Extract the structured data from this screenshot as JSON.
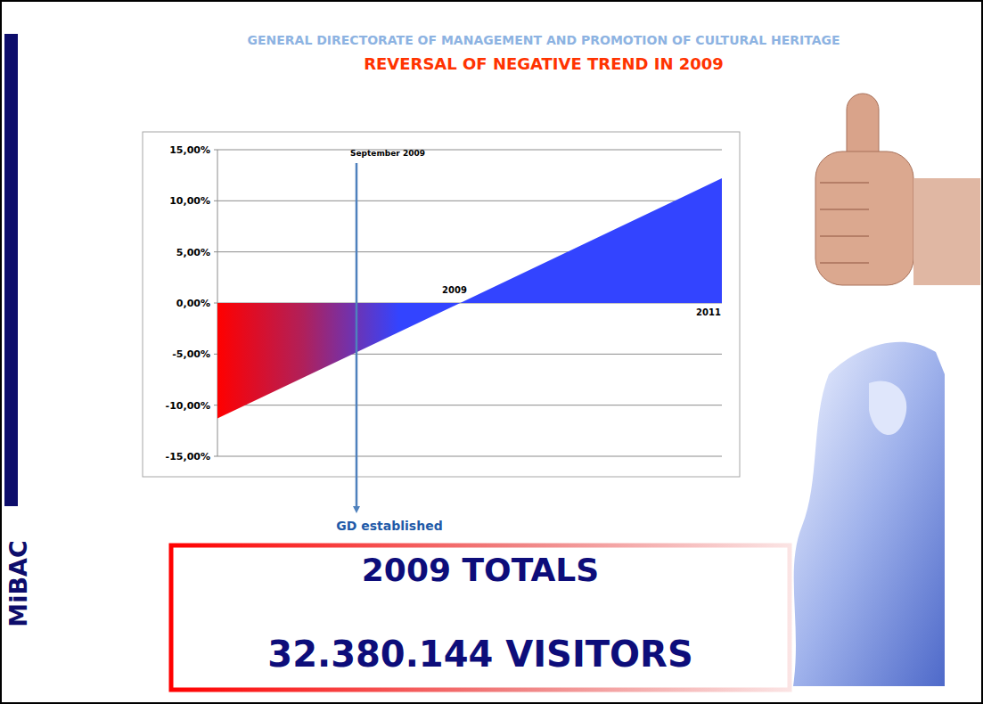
{
  "header": {
    "department": "GENERAL DIRECTORATE OF MANAGEMENT AND PROMOTION OF CULTURAL HERITAGE",
    "title": "REVERSAL OF NEGATIVE TREND IN 2009"
  },
  "logo": "MiBAC",
  "chart_data": {
    "type": "area",
    "categories": [
      null,
      null
    ],
    "values": [
      -11.3,
      12.2
    ],
    "color": "#3344ff",
    "ylim": [
      -15,
      15
    ],
    "yticks": [
      {
        "value": -15,
        "label": "-15,00%"
      },
      {
        "value": -10,
        "label": "-10,00%"
      },
      {
        "value": -5,
        "label": "-5,00%"
      },
      {
        "value": 0,
        "label": "0,00%"
      },
      {
        "value": 5,
        "label": "5,00%"
      },
      {
        "value": 10,
        "label": "10,00%"
      },
      {
        "value": 15,
        "label": "15,00%"
      }
    ],
    "grid": true,
    "tick_labels": "y",
    "annotations": [
      "September 2009",
      "GD established",
      "2009",
      "2011"
    ]
  },
  "totals": {
    "heading": "2009 TOTALS",
    "visitors": "32.380.144 VISITORS"
  }
}
